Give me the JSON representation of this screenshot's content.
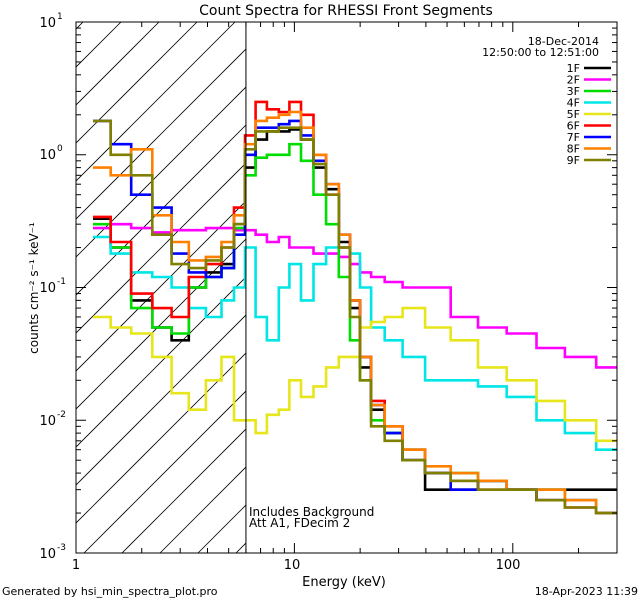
{
  "chart_data": {
    "type": "line",
    "title": "Count Spectra for RHESSI Front Segments",
    "xlabel": "Energy (keV)",
    "ylabel": "counts cm⁻² s⁻¹ keV⁻¹",
    "xscale": "log",
    "yscale": "log",
    "xlim": [
      1,
      300
    ],
    "ylim": [
      0.001,
      10
    ],
    "x_tick_labels": [
      "1",
      "10",
      "100"
    ],
    "y_tick_labels": [
      {
        "base": "10",
        "exp": "-3"
      },
      {
        "base": "10",
        "exp": "-2"
      },
      {
        "base": "10",
        "exp": "-1"
      },
      {
        "base": "10",
        "exp": "0"
      },
      {
        "base": "10",
        "exp": "1"
      }
    ],
    "grid": false,
    "legend_position": "top-right",
    "hatched_region_xmax_keV": 6,
    "date": "18-Dec-2014",
    "time_range": "12:50:00 to 12:51:00",
    "annotations": [
      "Includes Background",
      "Att A1, FDecim 2"
    ],
    "footer_left": "Generated by hsi_min_spectra_plot.pro",
    "footer_right": "18-Apr-2023 11:39",
    "series": [
      {
        "name": "1F",
        "color": "#000000",
        "x": [
          1.3,
          1.6,
          2.0,
          2.5,
          3.0,
          3.6,
          4.3,
          5.0,
          5.6,
          6.3,
          7.0,
          8.0,
          9.0,
          10.0,
          11.5,
          13.0,
          15.0,
          17.0,
          19.0,
          21.0,
          24.0,
          28.0,
          35.0,
          45.0,
          60.0,
          80.0,
          110.0,
          150.0,
          200.0,
          290.0
        ],
        "y": [
          0.33,
          0.2,
          0.08,
          0.05,
          0.04,
          0.1,
          0.13,
          0.15,
          0.3,
          0.8,
          1.3,
          1.5,
          1.5,
          1.55,
          1.3,
          0.8,
          0.55,
          0.22,
          0.07,
          0.025,
          0.012,
          0.008,
          0.005,
          0.003,
          0.003,
          0.0035,
          0.003,
          0.003,
          0.003,
          0.003
        ]
      },
      {
        "name": "2F",
        "color": "#ff00ff",
        "x": [
          1.3,
          1.6,
          2.0,
          2.5,
          3.0,
          3.6,
          4.3,
          5.0,
          5.6,
          6.3,
          7.0,
          8.0,
          9.0,
          10.0,
          11.5,
          13.0,
          15.0,
          17.0,
          19.0,
          21.0,
          24.0,
          28.0,
          35.0,
          45.0,
          60.0,
          80.0,
          110.0,
          150.0,
          200.0,
          290.0
        ],
        "y": [
          0.28,
          0.3,
          0.28,
          0.26,
          0.27,
          0.27,
          0.28,
          0.28,
          0.27,
          0.27,
          0.25,
          0.22,
          0.24,
          0.2,
          0.2,
          0.18,
          0.18,
          0.17,
          0.15,
          0.13,
          0.12,
          0.11,
          0.1,
          0.1,
          0.06,
          0.05,
          0.045,
          0.035,
          0.03,
          0.025
        ]
      },
      {
        "name": "3F",
        "color": "#00dd00",
        "x": [
          1.3,
          1.6,
          2.0,
          2.5,
          3.0,
          3.6,
          4.3,
          5.0,
          5.6,
          6.3,
          7.0,
          8.0,
          9.0,
          10.0,
          11.5,
          13.0,
          15.0,
          17.0,
          19.0,
          21.0,
          24.0,
          28.0,
          35.0,
          45.0,
          60.0,
          80.0,
          110.0,
          150.0,
          200.0,
          290.0
        ],
        "y": [
          0.3,
          0.2,
          0.07,
          0.05,
          0.045,
          0.1,
          0.12,
          0.14,
          0.28,
          0.7,
          0.95,
          1.0,
          1.0,
          1.2,
          0.9,
          0.5,
          0.3,
          0.12,
          0.04,
          0.02,
          0.01,
          0.008,
          0.006,
          0.004,
          0.004,
          0.0035,
          0.003,
          0.003,
          0.0025,
          0.002
        ]
      },
      {
        "name": "4F",
        "color": "#00e5e5",
        "x": [
          1.3,
          1.6,
          2.0,
          2.5,
          3.0,
          3.6,
          4.3,
          5.0,
          5.6,
          6.3,
          7.0,
          8.0,
          9.0,
          10.0,
          11.5,
          13.0,
          15.0,
          17.0,
          19.0,
          21.0,
          24.0,
          28.0,
          35.0,
          45.0,
          60.0,
          80.0,
          110.0,
          150.0,
          200.0,
          290.0
        ],
        "y": [
          0.24,
          0.18,
          0.13,
          0.12,
          0.1,
          0.07,
          0.06,
          0.08,
          0.1,
          0.2,
          0.06,
          0.04,
          0.1,
          0.15,
          0.08,
          0.15,
          0.2,
          0.2,
          0.18,
          0.1,
          0.05,
          0.04,
          0.03,
          0.02,
          0.02,
          0.018,
          0.015,
          0.01,
          0.008,
          0.006
        ]
      },
      {
        "name": "5F",
        "color": "#e6e61a",
        "x": [
          1.3,
          1.6,
          2.0,
          2.5,
          3.0,
          3.6,
          4.3,
          5.0,
          5.6,
          6.3,
          7.0,
          8.0,
          9.0,
          10.0,
          11.5,
          13.0,
          15.0,
          17.0,
          19.0,
          21.0,
          24.0,
          28.0,
          35.0,
          45.0,
          60.0,
          80.0,
          110.0,
          150.0,
          200.0,
          290.0
        ],
        "y": [
          0.06,
          0.05,
          0.045,
          0.03,
          0.016,
          0.012,
          0.02,
          0.03,
          0.01,
          0.01,
          0.008,
          0.011,
          0.012,
          0.02,
          0.015,
          0.018,
          0.025,
          0.03,
          0.03,
          0.05,
          0.055,
          0.06,
          0.07,
          0.05,
          0.04,
          0.025,
          0.02,
          0.014,
          0.01,
          0.007
        ]
      },
      {
        "name": "6F",
        "color": "#ff0000",
        "x": [
          1.3,
          1.6,
          2.0,
          2.5,
          3.0,
          3.6,
          4.3,
          5.0,
          5.6,
          6.3,
          7.0,
          8.0,
          9.0,
          10.0,
          11.5,
          13.0,
          15.0,
          17.0,
          19.0,
          21.0,
          24.0,
          28.0,
          35.0,
          45.0,
          60.0,
          80.0,
          110.0,
          150.0,
          200.0,
          290.0
        ],
        "y": [
          0.34,
          0.22,
          0.09,
          0.07,
          0.06,
          0.12,
          0.15,
          0.2,
          0.4,
          1.4,
          2.5,
          2.2,
          2.1,
          2.5,
          2.0,
          1.0,
          0.5,
          0.2,
          0.08,
          0.03,
          0.014,
          0.009,
          0.006,
          0.004,
          0.0035,
          0.003,
          0.003,
          0.0025,
          0.0022,
          0.002
        ]
      },
      {
        "name": "7F",
        "color": "#0000ff",
        "x": [
          1.3,
          1.6,
          2.0,
          2.5,
          3.0,
          3.6,
          4.3,
          5.0,
          5.6,
          6.3,
          7.0,
          8.0,
          9.0,
          10.0,
          11.5,
          13.0,
          15.0,
          17.0,
          19.0,
          21.0,
          24.0,
          28.0,
          35.0,
          45.0,
          60.0,
          80.0,
          110.0,
          150.0,
          200.0,
          290.0
        ],
        "y": [
          1.8,
          1.2,
          0.5,
          0.4,
          0.18,
          0.13,
          0.12,
          0.14,
          0.25,
          1.0,
          1.6,
          1.6,
          1.7,
          1.8,
          1.4,
          0.9,
          0.6,
          0.25,
          0.08,
          0.03,
          0.013,
          0.008,
          0.005,
          0.004,
          0.003,
          0.0035,
          0.003,
          0.0025,
          0.0025,
          0.002
        ]
      },
      {
        "name": "8F",
        "color": "#ff8000",
        "x": [
          1.3,
          1.6,
          2.0,
          2.5,
          3.0,
          3.6,
          4.3,
          5.0,
          5.6,
          6.3,
          7.0,
          8.0,
          9.0,
          10.0,
          11.5,
          13.0,
          15.0,
          17.0,
          19.0,
          21.0,
          24.0,
          28.0,
          35.0,
          45.0,
          60.0,
          80.0,
          110.0,
          150.0,
          200.0,
          290.0
        ],
        "y": [
          0.8,
          0.7,
          1.1,
          0.35,
          0.22,
          0.16,
          0.17,
          0.22,
          0.35,
          1.2,
          1.8,
          1.9,
          2.0,
          2.1,
          1.6,
          1.0,
          0.6,
          0.25,
          0.08,
          0.03,
          0.013,
          0.009,
          0.006,
          0.0045,
          0.004,
          0.0035,
          0.003,
          0.003,
          0.0025,
          0.002
        ]
      },
      {
        "name": "9F",
        "color": "#808000",
        "x": [
          1.3,
          1.6,
          2.0,
          2.5,
          3.0,
          3.6,
          4.3,
          5.0,
          5.6,
          6.3,
          7.0,
          8.0,
          9.0,
          10.0,
          11.5,
          13.0,
          15.0,
          17.0,
          19.0,
          21.0,
          24.0,
          28.0,
          35.0,
          45.0,
          60.0,
          80.0,
          110.0,
          150.0,
          200.0,
          290.0
        ],
        "y": [
          1.8,
          1.0,
          0.7,
          0.25,
          0.15,
          0.14,
          0.16,
          0.2,
          0.3,
          1.1,
          1.5,
          1.5,
          1.6,
          1.6,
          1.3,
          0.85,
          0.5,
          0.2,
          0.06,
          0.02,
          0.009,
          0.007,
          0.005,
          0.004,
          0.0035,
          0.003,
          0.003,
          0.0025,
          0.0022,
          0.002
        ]
      }
    ]
  }
}
